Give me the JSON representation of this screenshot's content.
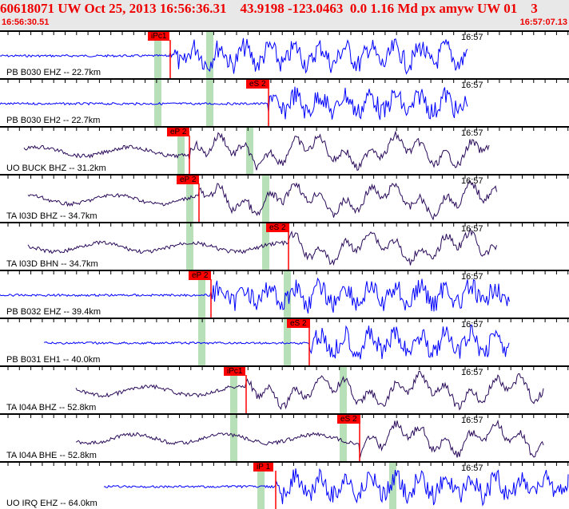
{
  "header": {
    "title": "60618071 UW Oct 25, 2013 16:56:36.31    43.9198 -123.0463  0.0 1.16 Md px amyw UW 01    3",
    "start_time": "16:56:30.51",
    "end_time": "16:57:07.13"
  },
  "colors": {
    "blue": "#0000ff",
    "purple": "#2a0a5a",
    "pick": "#ff0000",
    "window": "#b8e0b8"
  },
  "panels": [
    {
      "label": "PB B030 EHZ -- 22.7km",
      "time": "16:57",
      "pick": "iPc1",
      "pickx": 213,
      "green": [
        193,
        258
      ],
      "color": "blue",
      "start": 0,
      "end": 585
    },
    {
      "label": "PB B030 EH2 -- 22.7km",
      "time": "16:57",
      "pick": "eS 2",
      "pickx": 336,
      "green": [
        193,
        258
      ],
      "color": "blue",
      "start": 0,
      "end": 585
    },
    {
      "label": "UO BUCK BHZ -- 31.2km",
      "time": "16:57",
      "pick": "eP 2",
      "pickx": 237,
      "green": [
        222,
        308
      ],
      "color": "purple",
      "start": 30,
      "end": 612
    },
    {
      "label": "TA I03D BHZ -- 34.7km",
      "time": "16:57",
      "pick": "eP 2",
      "pickx": 249,
      "green": [
        233,
        328
      ],
      "color": "purple",
      "start": 35,
      "end": 622
    },
    {
      "label": "TA I03D BHN -- 34.7km",
      "time": "16:57",
      "pick": "eS 2",
      "pickx": 361,
      "green": [
        233,
        328
      ],
      "color": "purple",
      "start": 35,
      "end": 622
    },
    {
      "label": "PB B032 EHZ -- 39.4km",
      "time": "16:57",
      "pick": "eP 2",
      "pickx": 264,
      "green": [
        248,
        355
      ],
      "color": "blue",
      "start": 0,
      "end": 638
    },
    {
      "label": "PB B031 EH1 -- 40.0km",
      "time": "16:57",
      "pick": "eS 2",
      "pickx": 387,
      "green": [
        248,
        355
      ],
      "color": "blue",
      "start": 55,
      "end": 638
    },
    {
      "label": "TA I04A BHZ -- 52.8km",
      "time": "16:57",
      "pick": "iPc1",
      "pickx": 308,
      "green": [
        288,
        425
      ],
      "color": "purple",
      "start": 95,
      "end": 680
    },
    {
      "label": "TA I04A BHE -- 52.8km",
      "time": "16:57",
      "pick": "eS 2",
      "pickx": 450,
      "green": [
        288,
        425
      ],
      "color": "purple",
      "start": 95,
      "end": 680
    },
    {
      "label": "UO IRQ EHZ -- 64.0km",
      "time": "16:57",
      "pick": "iP 1",
      "pickx": 345,
      "green": [
        322,
        487
      ],
      "color": "blue",
      "start": 130,
      "end": 712
    }
  ]
}
